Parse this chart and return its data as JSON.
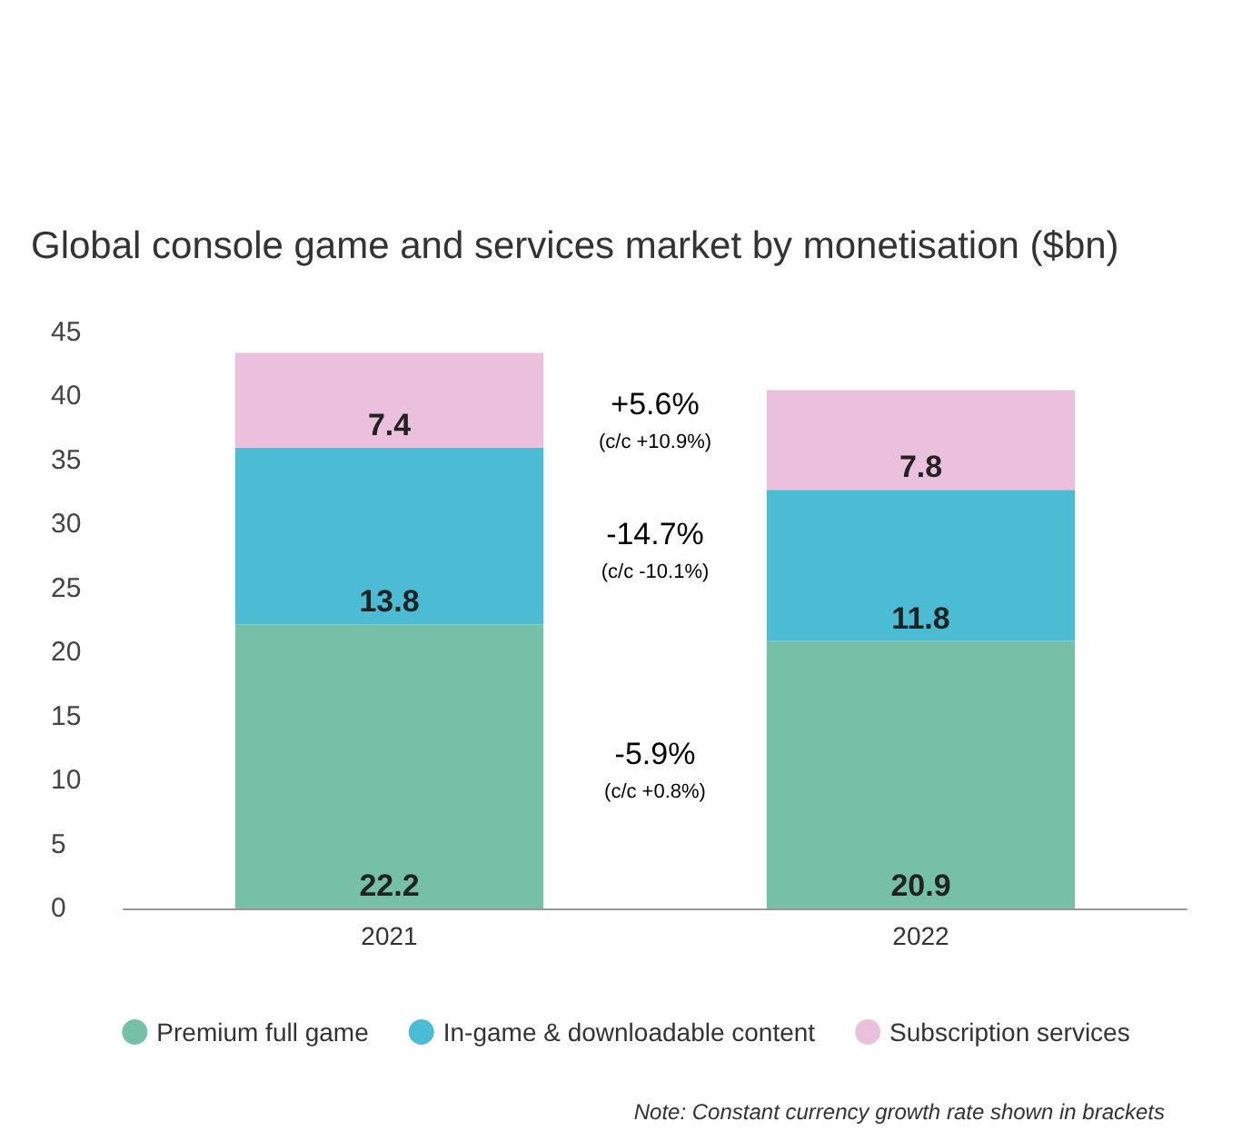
{
  "chart_data": {
    "type": "bar",
    "title": "Global console game and services market by monetisation ($bn)",
    "categories": [
      "2021",
      "2022"
    ],
    "stacked": true,
    "data_labels": true,
    "legend": "bottom",
    "grid": false,
    "ylim": [
      0,
      45
    ],
    "yticks": [
      0,
      5,
      10,
      15,
      20,
      25,
      30,
      35,
      40,
      45
    ],
    "series": [
      {
        "name": "Premium full game",
        "color": "#76c0a8",
        "values": [
          22.2,
          20.9
        ]
      },
      {
        "name": "In-game & downloadable content",
        "color": "#4bbcd4",
        "values": [
          13.8,
          11.8
        ]
      },
      {
        "name": "Subscription services",
        "color": "#ebc0dc",
        "values": [
          7.4,
          7.8
        ]
      }
    ],
    "annotations": [
      "+5.6%\n(c/c +10.9%)",
      "-14.7%\n(c/c -10.1%)",
      "-5.9%\n(c/c +0.8%)",
      "Note: Constant currency growth rate shown in brackets"
    ]
  }
}
